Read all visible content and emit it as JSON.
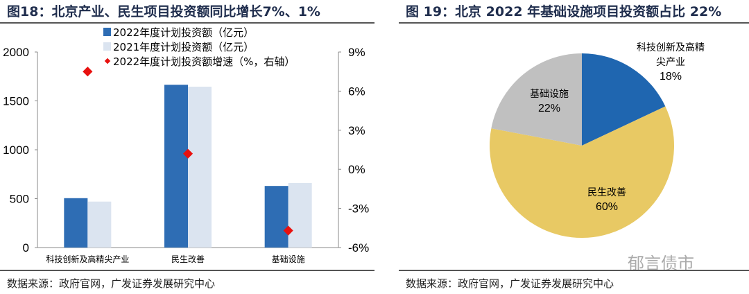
{
  "left": {
    "title": "图18：北京产业、民生项目投资额同比增长7%、1%",
    "source": "数据来源：政府官网，广发证券发展研究中心"
  },
  "right": {
    "title": "图 19：北京 2022 年基础设施项目投资额占比 22%",
    "source": "数据来源：政府官网，广发证券发展研究中心",
    "watermark": "郁言债市"
  },
  "chart_data": [
    {
      "type": "bar",
      "categories": [
        "科技创新及高精尖产业",
        "民生改善",
        "基础设施"
      ],
      "series": [
        {
          "name": "2022年度计划投资额（亿元）",
          "values": [
            505,
            1665,
            630
          ],
          "color": "#2e6db4"
        },
        {
          "name": "2021年度计划投资额（亿元）",
          "values": [
            470,
            1645,
            660
          ],
          "color": "#dbe4f0"
        },
        {
          "name": "2022年度计划投资额增速（%，右轴）",
          "values": [
            7.5,
            1.2,
            -4.7
          ],
          "color": "#e8110f",
          "type": "scatter",
          "axis": "right"
        }
      ],
      "ylim": [
        0,
        2000
      ],
      "yticks": [
        "0",
        "500",
        "1000",
        "1500",
        "2000"
      ],
      "y2lim": [
        -6,
        9
      ],
      "y2ticks": [
        "-6%",
        "-3%",
        "0%",
        "3%",
        "6%",
        "9%"
      ],
      "legend": "top",
      "grid": false
    },
    {
      "type": "pie",
      "slices": [
        {
          "label": "科技创新及高精尖产业",
          "label_lines": [
            "科技创新及高精",
            "尖产业"
          ],
          "value": 18,
          "value_label": "18%",
          "color": "#1f66b0"
        },
        {
          "label": "民生改善",
          "label_lines": [
            "民生改善"
          ],
          "value": 60,
          "value_label": "60%",
          "color": "#e8c964"
        },
        {
          "label": "基础设施",
          "label_lines": [
            "基础设施"
          ],
          "value": 22,
          "value_label": "22%",
          "color": "#c0c0c0"
        }
      ]
    }
  ]
}
